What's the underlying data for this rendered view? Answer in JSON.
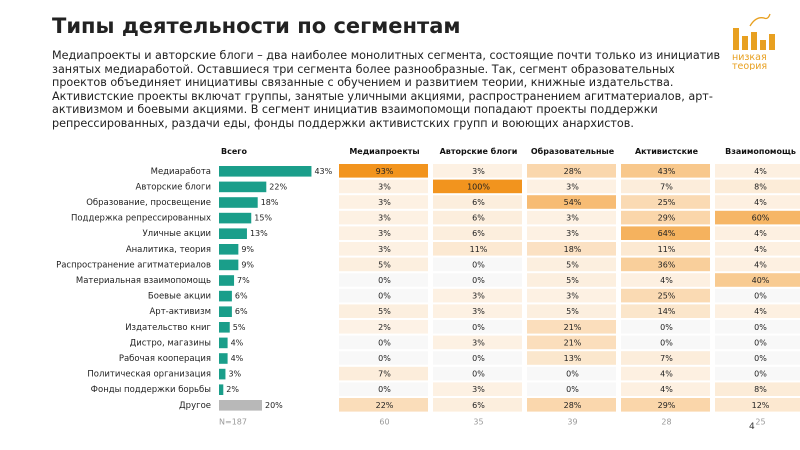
{
  "title": "Типы деятельности по сегментам",
  "intro": "Медиапроекты и авторские блоги – два наиболее монолитных сегмента, состоящие почти только из инициатив занятых медиаработой. Оставшиеся три сегмента более разнообразные. Так, сегмент образовательных проектов объединяет инициативы связанные с обучением и развитием теории, книжные издательства. Активистские проекты включат группы, занятые уличными акциями, распространением агитматериалов, арт-активизмом и боевыми акциями. В сегмент инициатив взаимопомощи попадают проекты поддержки репрессированных, раздачи еды, фонды поддержки активистских групп и воюющих анархистов.",
  "logo": {
    "text_line1": "низкая",
    "text_line2": "теория",
    "color": "#e8a020"
  },
  "page_number": "4",
  "colors": {
    "bar": "#1a9e8a",
    "other_bar": "#b8b8b8",
    "heat_max": "#f2941e",
    "heat_min": "#fdf4ea",
    "zero_cell": "#f8f8f8"
  },
  "chart_data": {
    "type": "heatmap",
    "categories": [
      "Медиаработа",
      "Авторские блоги",
      "Образование, просвещение",
      "Поддержка репрессированных",
      "Уличные акции",
      "Аналитика, теория",
      "Распространение агитматериалов",
      "Материальная взаимопомощь",
      "Боевые акции",
      "Арт-активизм",
      "Издательство книг",
      "Дистро, магазины",
      "Рабочая кооперация",
      "Политическая организация",
      "Фонды поддержки борьбы",
      "Другое"
    ],
    "total": {
      "header": "Всего",
      "values": [
        43,
        22,
        18,
        15,
        13,
        9,
        9,
        7,
        6,
        6,
        5,
        4,
        4,
        3,
        2,
        20
      ],
      "labels": [
        "43%",
        "22%",
        "18%",
        "15%",
        "13%",
        "9%",
        "9%",
        "7%",
        "6%",
        "6%",
        "5%",
        "4%",
        "4%",
        "3%",
        "2%",
        "20%"
      ],
      "n_label": "N=187"
    },
    "series": [
      {
        "name": "Медиапроекты",
        "values": [
          93,
          3,
          3,
          3,
          3,
          3,
          5,
          0,
          0,
          5,
          2,
          0,
          0,
          7,
          0,
          22
        ],
        "n_label": "60"
      },
      {
        "name": "Авторские блоги",
        "values": [
          3,
          100,
          6,
          6,
          6,
          11,
          0,
          0,
          3,
          3,
          0,
          3,
          0,
          0,
          3,
          6
        ],
        "n_label": "35"
      },
      {
        "name": "Образовательные",
        "values": [
          28,
          3,
          54,
          3,
          3,
          18,
          5,
          5,
          3,
          5,
          21,
          21,
          13,
          0,
          0,
          28
        ],
        "n_label": "39"
      },
      {
        "name": "Активистские",
        "values": [
          43,
          7,
          25,
          29,
          64,
          11,
          36,
          4,
          25,
          14,
          0,
          0,
          7,
          4,
          4,
          29
        ],
        "n_label": "28"
      },
      {
        "name": "Взаимопомощь",
        "values": [
          4,
          8,
          4,
          60,
          4,
          4,
          4,
          40,
          0,
          4,
          0,
          0,
          0,
          0,
          8,
          12
        ],
        "n_label": "25"
      }
    ],
    "unit": "%"
  }
}
